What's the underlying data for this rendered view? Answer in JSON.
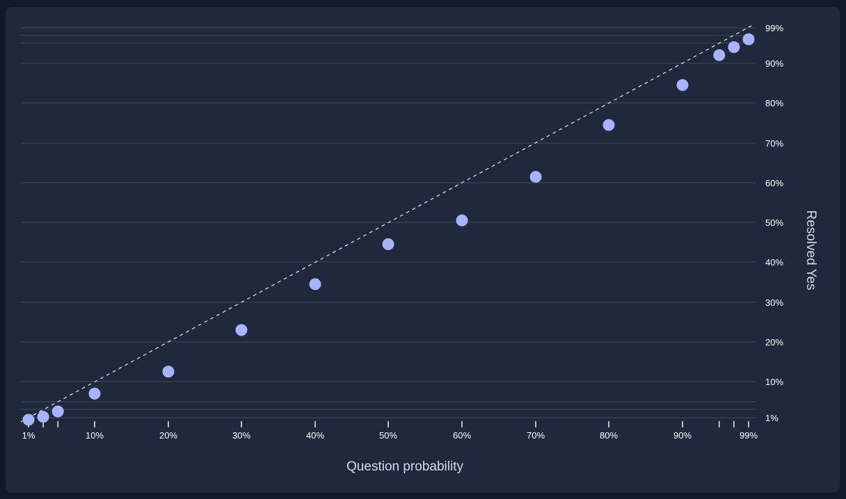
{
  "chart_data": {
    "type": "scatter",
    "xlabel": "Question probability",
    "ylabel": "Resolved Yes",
    "x_axis": {
      "range": [
        0,
        100
      ],
      "position": "bottom",
      "tick_values": [
        1,
        10,
        20,
        30,
        40,
        50,
        60,
        70,
        80,
        90,
        99
      ],
      "tick_labels": [
        "1%",
        "10%",
        "20%",
        "30%",
        "40%",
        "50%",
        "60%",
        "70%",
        "80%",
        "90%",
        "99%"
      ],
      "minor_ticks": [
        3,
        5,
        95,
        97
      ]
    },
    "y_axis": {
      "range": [
        0,
        100
      ],
      "position": "right",
      "tick_values": [
        1,
        10,
        20,
        30,
        40,
        50,
        60,
        70,
        80,
        90,
        99
      ],
      "tick_labels": [
        "1%",
        "10%",
        "20%",
        "30%",
        "40%",
        "50%",
        "60%",
        "70%",
        "80%",
        "90%",
        "99%"
      ],
      "extra_gridlines": [
        3,
        5,
        95,
        97
      ]
    },
    "grid": true,
    "reference_line": "y = x (dashed)",
    "x": [
      1,
      3,
      5,
      10,
      20,
      30,
      40,
      50,
      60,
      70,
      80,
      90,
      95,
      97,
      99
    ],
    "y": [
      0.5,
      1.2,
      2.5,
      7,
      12.5,
      23,
      34.5,
      44.5,
      50.5,
      61.5,
      74.5,
      84.5,
      92,
      94,
      96
    ]
  },
  "colors": {
    "background": "#111a2c",
    "panel": "#1f293b",
    "gridline": "#3b4556",
    "points": "#a5b4fc",
    "reference_line": "#e8ebf0",
    "text": "#ffffff"
  }
}
